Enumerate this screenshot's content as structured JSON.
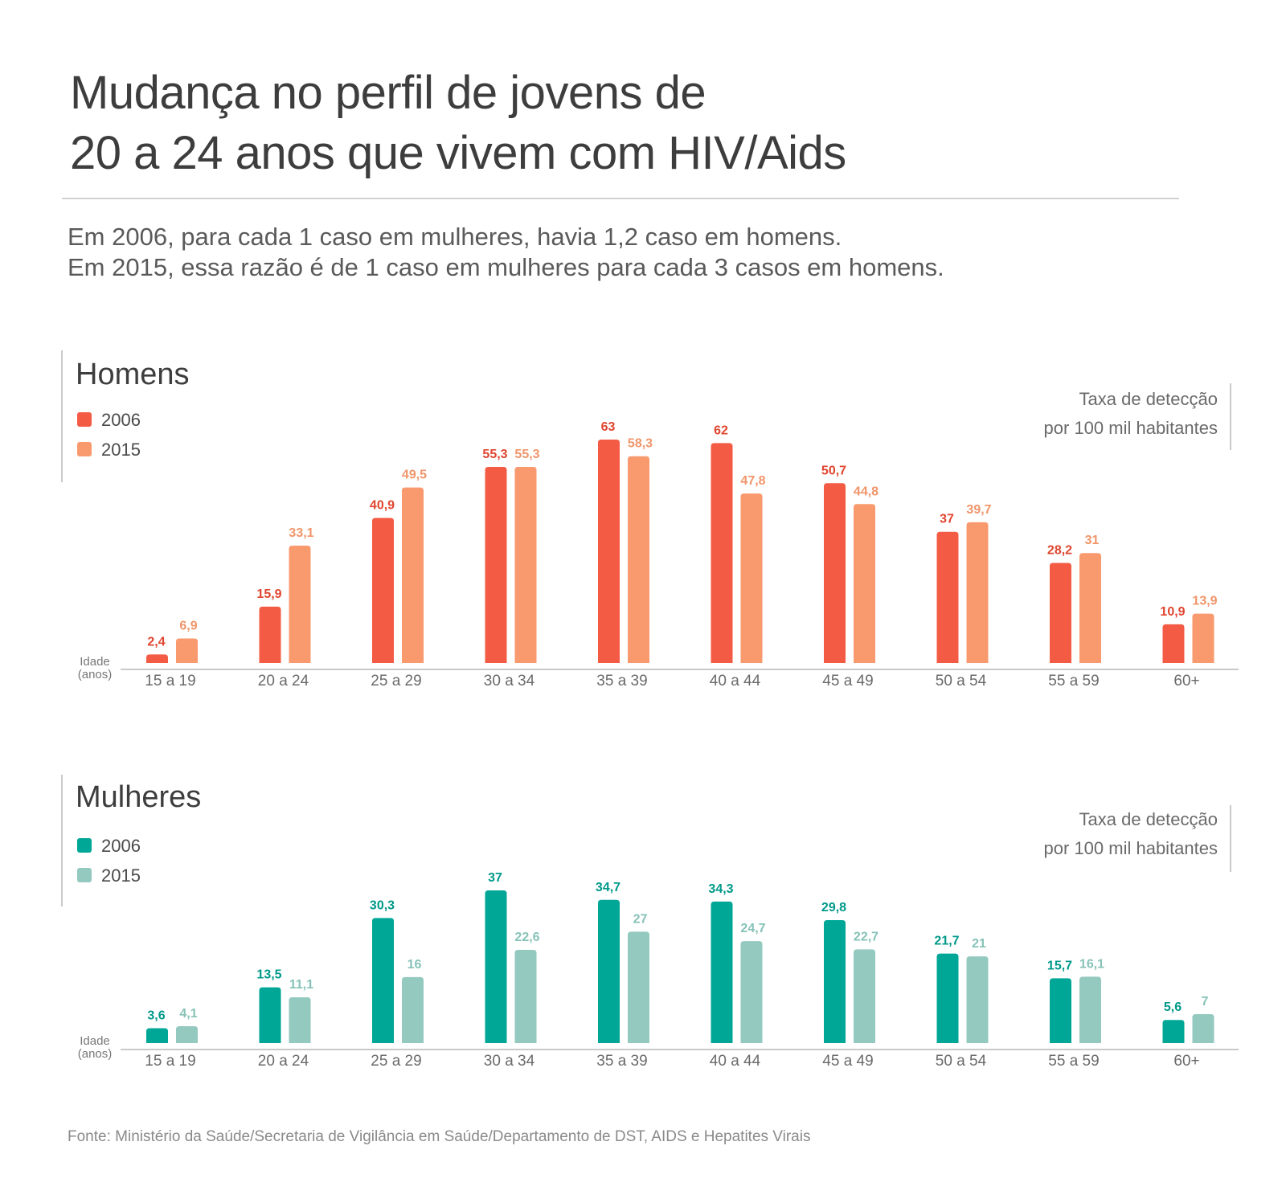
{
  "header": {
    "title_line1": "Mudança no perfil de jovens de",
    "title_line2": "20 a 24 anos que vivem com HIV/Aids",
    "subtitle_line1": "Em 2006, para cada 1 caso em mulheres, havia 1,2 caso em homens.",
    "subtitle_line2": "Em 2015, essa razão é de 1 caso em mulheres para cada 3 casos em homens."
  },
  "footer": {
    "source": "Fonte: Ministério da Saúde/Secretaria de Vigilância em Saúde/Departamento de DST, AIDS e Hepatites Virais"
  },
  "chart_data": [
    {
      "type": "bar",
      "title": "Homens",
      "unit_label_line1": "Taxa de detecção",
      "unit_label_line2": "por 100 mil habitantes",
      "xlabel_line1": "Idade",
      "xlabel_line2": "(anos)",
      "categories": [
        "15 a 19",
        "20 a 24",
        "25 a 29",
        "30 a 34",
        "35 a 39",
        "40 a 44",
        "45 a 49",
        "50 a 54",
        "55 a 59",
        "60+"
      ],
      "series": [
        {
          "name": "2006",
          "color": "#f45b45",
          "values": [
            2.4,
            15.9,
            40.9,
            55.3,
            63,
            62,
            50.7,
            37,
            28.2,
            10.9
          ],
          "labels": [
            "2,4",
            "15,9",
            "40,9",
            "55,3",
            "63",
            "62",
            "50,7",
            "37",
            "28,2",
            "10,9"
          ],
          "label_color": "#e0452f"
        },
        {
          "name": "2015",
          "color": "#f9996e",
          "values": [
            6.9,
            33.1,
            49.5,
            55.3,
            58.3,
            47.8,
            44.8,
            39.7,
            31,
            13.9
          ],
          "labels": [
            "6,9",
            "33,1",
            "49,5",
            "55,3",
            "58,3",
            "47,8",
            "44,8",
            "39,7",
            "31",
            "13,9"
          ],
          "label_color": "#f0956a"
        }
      ],
      "ylim": [
        0,
        63
      ]
    },
    {
      "type": "bar",
      "title": "Mulheres",
      "unit_label_line1": "Taxa de detecção",
      "unit_label_line2": "por 100 mil habitantes",
      "xlabel_line1": "Idade",
      "xlabel_line2": "(anos)",
      "categories": [
        "15 a 19",
        "20 a 24",
        "25 a 29",
        "30 a 34",
        "35 a 39",
        "40 a 44",
        "45 a 49",
        "50 a 54",
        "55 a 59",
        "60+"
      ],
      "series": [
        {
          "name": "2006",
          "color": "#00a797",
          "values": [
            3.6,
            13.5,
            30.3,
            37,
            34.7,
            34.3,
            29.8,
            21.7,
            15.7,
            5.6
          ],
          "labels": [
            "3,6",
            "13,5",
            "30,3",
            "37",
            "34,7",
            "34,3",
            "29,8",
            "21,7",
            "15,7",
            "5,6"
          ],
          "label_color": "#00998a"
        },
        {
          "name": "2015",
          "color": "#93c9bf",
          "values": [
            4.1,
            11.1,
            16,
            22.6,
            27,
            24.7,
            22.7,
            21,
            16.1,
            7
          ],
          "labels": [
            "4,1",
            "11,1",
            "16",
            "22,6",
            "27",
            "24,7",
            "22,7",
            "21",
            "16,1",
            "7"
          ],
          "label_color": "#86c2b7"
        }
      ],
      "ylim": [
        0,
        37
      ]
    }
  ]
}
